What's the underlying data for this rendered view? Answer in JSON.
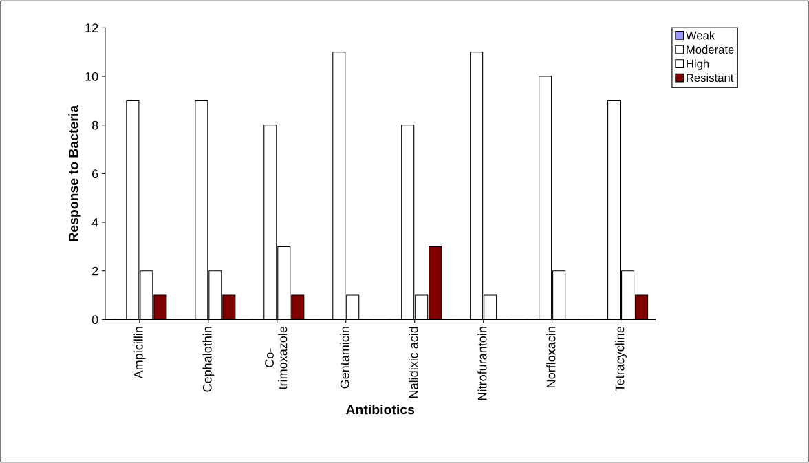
{
  "chart_data": {
    "type": "bar",
    "xlabel": "Antibiotics",
    "ylabel": "Response to Bacteria",
    "categories": [
      "Ampicillin",
      "Cephalothin",
      "Co-\ntrimoxazole",
      "Gentamicin",
      "Nalidixic acid",
      "Nitrofurantoin",
      "Norfloxacin",
      "Tetracycline"
    ],
    "series": [
      {
        "name": "Weak",
        "color": "#9999ff",
        "values": [
          0,
          0,
          0,
          0,
          0,
          0,
          0,
          0
        ]
      },
      {
        "name": "Moderate",
        "color": "#ffffff",
        "values": [
          9,
          9,
          8,
          11,
          8,
          11,
          10,
          9
        ]
      },
      {
        "name": "High",
        "color": "#ffffff",
        "values": [
          2,
          2,
          3,
          1,
          1,
          1,
          2,
          2
        ]
      },
      {
        "name": "Resistant",
        "color": "#800000",
        "values": [
          1,
          1,
          1,
          0,
          3,
          0,
          0,
          1
        ]
      }
    ],
    "ylim": [
      0,
      12
    ],
    "yticks": [
      0,
      2,
      4,
      6,
      8,
      10,
      12
    ],
    "grid": false,
    "legend": "top right"
  }
}
